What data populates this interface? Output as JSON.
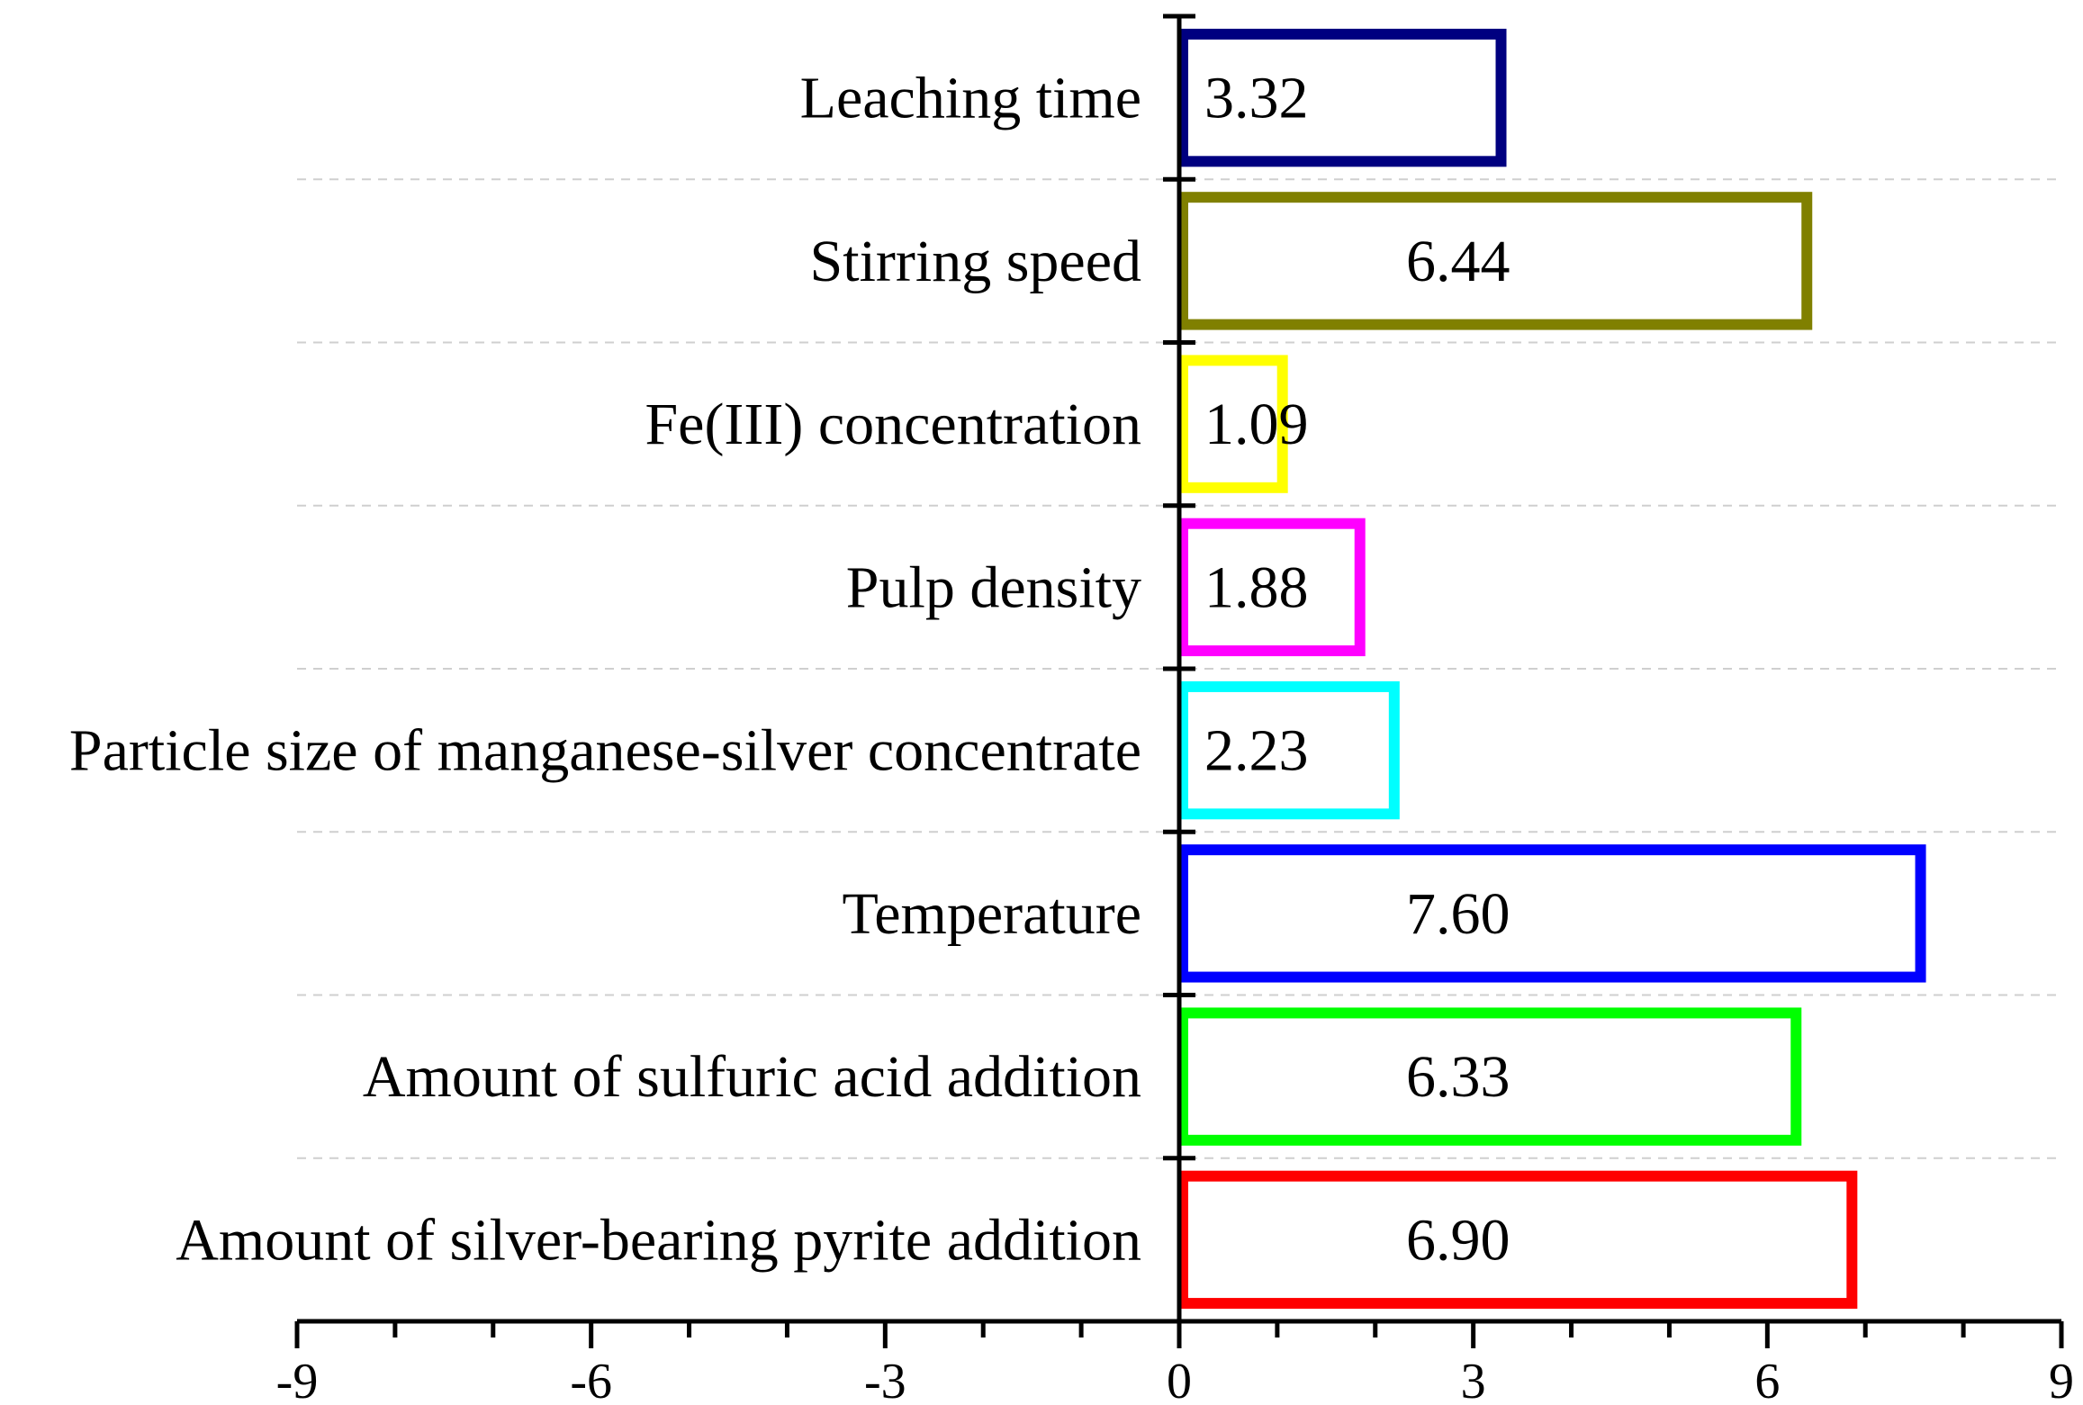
{
  "chart_data": {
    "type": "bar",
    "orientation": "horizontal",
    "title": "",
    "xlabel": "",
    "ylabel": "",
    "xlim": [
      -9,
      9
    ],
    "x_ticks": [
      -9,
      -6,
      -3,
      0,
      3,
      6,
      9
    ],
    "x_tick_labels": [
      "-9",
      "-6",
      "-3",
      "0",
      "3",
      "6",
      "9"
    ],
    "grid": true,
    "bars_filled": false,
    "categories": [
      "Leaching time",
      "Stirring speed",
      "Fe(III) concentration",
      "Pulp density",
      "Particle size of manganese-silver concentrate",
      "Temperature",
      "Amount of sulfuric acid addition",
      "Amount of silver-bearing pyrite addition"
    ],
    "values": [
      3.32,
      6.44,
      1.09,
      1.88,
      2.23,
      7.6,
      6.33,
      6.9
    ],
    "value_labels": [
      "3.32",
      "6.44",
      "1.09",
      "1.88",
      "2.23",
      "7.60",
      "6.33",
      "6.90"
    ],
    "colors": [
      "#000080",
      "#808000",
      "#ffff00",
      "#ff00ff",
      "#00ffff",
      "#0000ff",
      "#00ff00",
      "#ff0000"
    ]
  }
}
